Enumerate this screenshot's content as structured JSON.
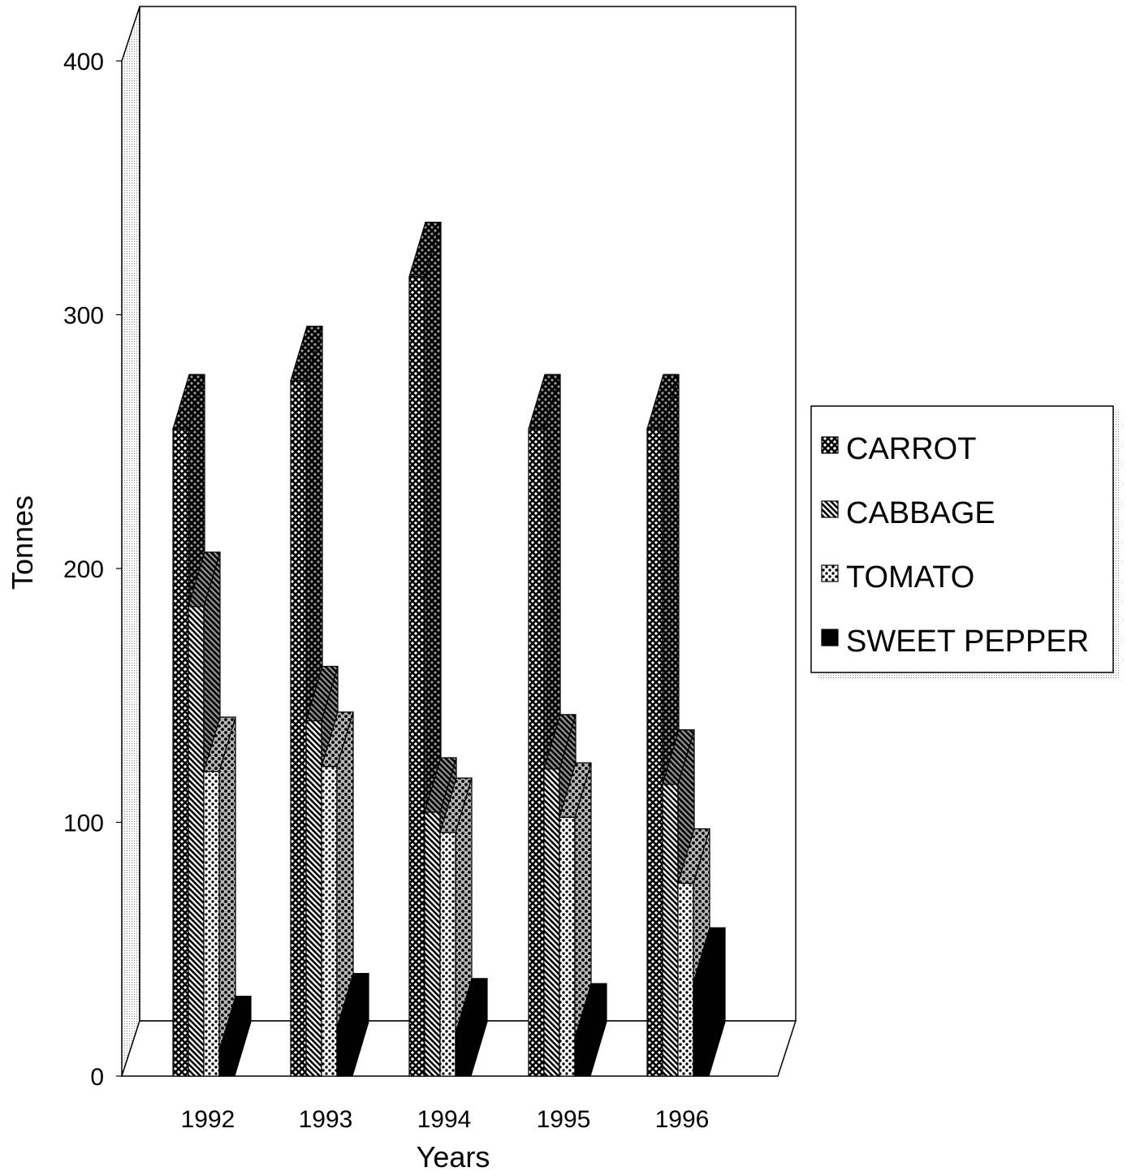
{
  "chart_data": {
    "type": "bar",
    "style": "3d-clustered-column",
    "title": "",
    "xlabel": "Years",
    "ylabel": "Tonnes",
    "categories": [
      "1992",
      "1993",
      "1994",
      "1995",
      "1996"
    ],
    "ylim": [
      0,
      400
    ],
    "yticks": [
      0,
      100,
      200,
      300,
      400
    ],
    "grid": false,
    "legend_position": "right",
    "series": [
      {
        "name": "CARROT",
        "values": [
          255,
          274,
          315,
          255,
          255
        ],
        "pattern": "crosshatch",
        "color": "#333333"
      },
      {
        "name": "CABBAGE",
        "values": [
          185,
          140,
          104,
          121,
          115
        ],
        "pattern": "diagonal",
        "color": "#333333"
      },
      {
        "name": "TOMATO",
        "values": [
          120,
          122,
          96,
          102,
          76
        ],
        "pattern": "dots",
        "color": "#333333"
      },
      {
        "name": "SWEET PEPPER",
        "values": [
          10,
          19,
          17,
          15,
          37
        ],
        "pattern": "solid",
        "color": "#000000"
      }
    ]
  }
}
